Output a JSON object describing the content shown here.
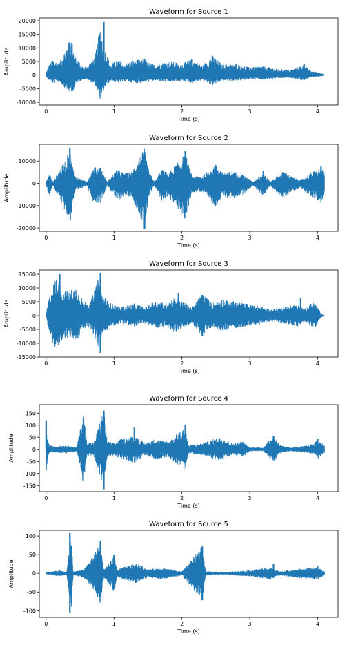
{
  "chart_data": [
    {
      "type": "line",
      "title": "Waveform for Source 1",
      "xlabel": "Time (s)",
      "ylabel": "Amplitude",
      "xlim": [
        -0.1,
        4.3
      ],
      "ylim": [
        -11000,
        21000
      ],
      "xticks": [
        0,
        1,
        2,
        3,
        4
      ],
      "yticks": [
        -10000,
        -5000,
        0,
        5000,
        10000,
        15000,
        20000
      ],
      "color": "#1f77b4",
      "series": [
        {
          "x": [
            0.0,
            0.35,
            0.85,
            1.45,
            2.15,
            2.45,
            3.8,
            4.1
          ],
          "y": [
            0,
            12000,
            19500,
            6000,
            6000,
            7000,
            4000,
            0
          ]
        }
      ]
    },
    {
      "type": "line",
      "title": "Waveform for Source 2",
      "xlabel": "Time (s)",
      "ylabel": "Amplitude",
      "xlim": [
        -0.1,
        4.3
      ],
      "ylim": [
        -21500,
        17500
      ],
      "xticks": [
        0,
        1,
        2,
        3,
        4
      ],
      "yticks": [
        -20000,
        -10000,
        0,
        10000
      ],
      "color": "#1f77b4",
      "series": [
        {
          "x": [
            0.0,
            0.35,
            0.8,
            1.45,
            2.05,
            2.5,
            3.2,
            4.05
          ],
          "y": [
            0,
            16000,
            7000,
            -20500,
            14500,
            8000,
            5500,
            7500
          ]
        }
      ]
    },
    {
      "type": "line",
      "title": "Waveform for Source 3",
      "xlabel": "Time (s)",
      "ylabel": "Amplitude",
      "xlim": [
        -0.1,
        4.3
      ],
      "ylim": [
        -15000,
        16500
      ],
      "xticks": [
        0,
        1,
        2,
        3,
        4
      ],
      "yticks": [
        -15000,
        -10000,
        -5000,
        0,
        5000,
        10000,
        15000
      ],
      "color": "#1f77b4",
      "series": [
        {
          "x": [
            0.0,
            0.2,
            0.8,
            0.8,
            1.95,
            2.3,
            2.3,
            3.75,
            4.1
          ],
          "y": [
            0,
            15000,
            15500,
            -13500,
            8000,
            7500,
            -7500,
            6500,
            0
          ]
        }
      ]
    },
    {
      "type": "line",
      "title": "Waveform for Source 4",
      "xlabel": "Time (s)",
      "ylabel": "Amplitude",
      "xlim": [
        -0.1,
        4.3
      ],
      "ylim": [
        -175,
        185
      ],
      "xticks": [
        0,
        1,
        2,
        3,
        4
      ],
      "yticks": [
        -150,
        -100,
        -50,
        0,
        50,
        100,
        150
      ],
      "color": "#1f77b4",
      "series": [
        {
          "x": [
            0.0,
            0.55,
            0.85,
            0.85,
            1.3,
            2.05,
            3.35,
            4.0
          ],
          "y": [
            120,
            130,
            160,
            -165,
            90,
            100,
            55,
            45
          ]
        }
      ]
    },
    {
      "type": "line",
      "title": "Waveform for Source 5",
      "xlabel": "Time (s)",
      "ylabel": "Amplitude",
      "xlim": [
        -0.1,
        4.3
      ],
      "ylim": [
        -118,
        115
      ],
      "xticks": [
        0,
        1,
        2,
        3,
        4
      ],
      "yticks": [
        -100,
        -50,
        0,
        50,
        100
      ],
      "color": "#1f77b4",
      "series": [
        {
          "x": [
            0.35,
            0.35,
            0.8,
            1.0,
            2.3,
            2.3,
            3.35,
            4.0
          ],
          "y": [
            108,
            -105,
            87,
            50,
            72,
            -72,
            25,
            20
          ]
        }
      ]
    }
  ]
}
